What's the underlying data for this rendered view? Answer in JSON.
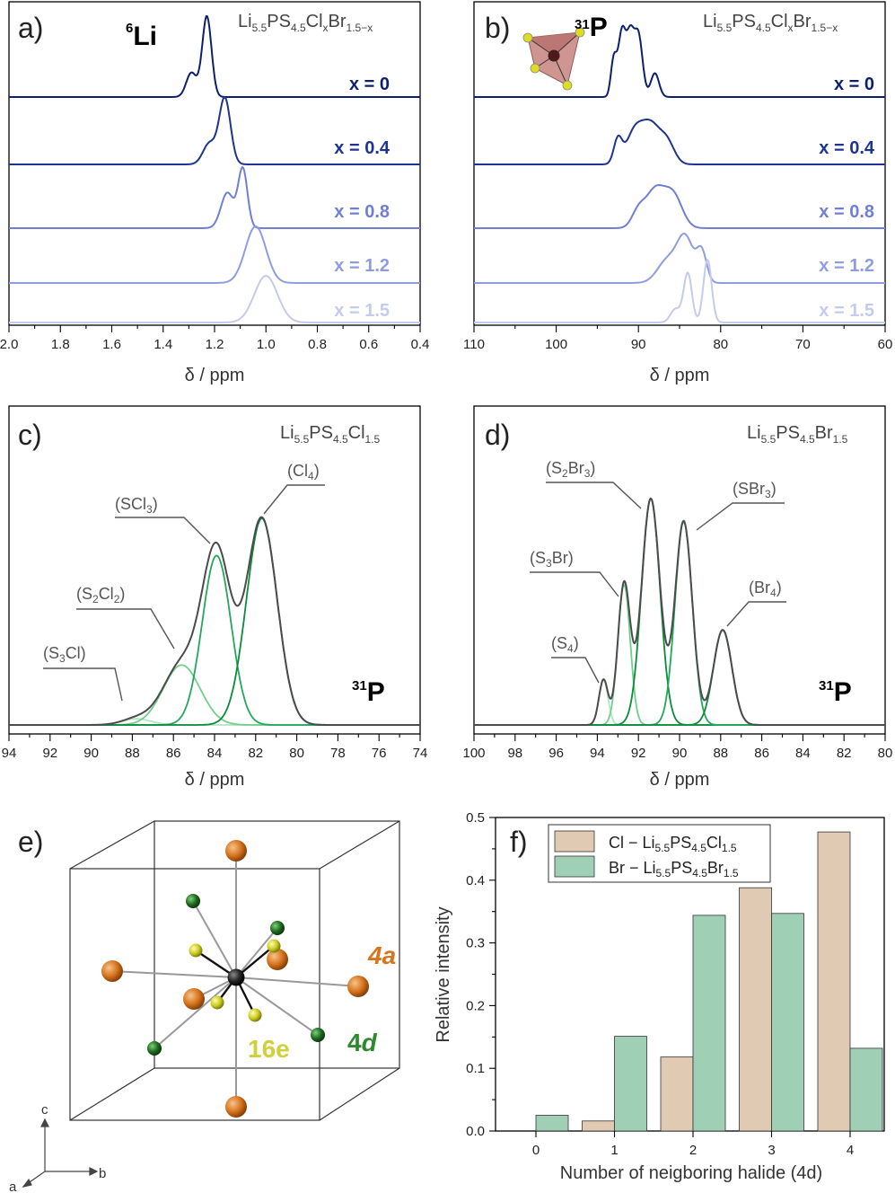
{
  "panels": {
    "a": {
      "letter": "a)",
      "nucleus_mass": "6",
      "nucleus_symbol": "Li",
      "formula": {
        "p1": "Li",
        "s1": "5.5",
        "p2": "PS",
        "s2": "4.5",
        "p3": "Cl",
        "s3": "x",
        "p4": "Br",
        "s4": "1.5−x"
      }
    },
    "b": {
      "letter": "b)",
      "nucleus_mass": "31",
      "nucleus_symbol": "P",
      "formula": {
        "p1": "Li",
        "s1": "5.5",
        "p2": "PS",
        "s2": "4.5",
        "p3": "Cl",
        "s3": "x",
        "p4": "Br",
        "s4": "1.5−x"
      }
    },
    "c": {
      "letter": "c)",
      "nucleus_mass": "31",
      "nucleus_symbol": "P",
      "formula": {
        "p1": "Li",
        "s1": "5.5",
        "p2": "PS",
        "s2": "4.5",
        "p3": "Cl",
        "s3": "1.5"
      },
      "annotations": [
        {
          "id": "s3cl",
          "pre": "(S",
          "sub": "3",
          "post": "Cl)"
        },
        {
          "id": "s2cl2",
          "pre": "(S",
          "sub": "2",
          "mid": "Cl",
          "sub2": "2",
          "post": ")"
        },
        {
          "id": "scl3",
          "pre": "(SCl",
          "sub": "3",
          "post": ")"
        },
        {
          "id": "cl4",
          "pre": "(Cl",
          "sub": "4",
          "post": ")"
        }
      ]
    },
    "d": {
      "letter": "d)",
      "nucleus_mass": "31",
      "nucleus_symbol": "P",
      "formula": {
        "p1": "Li",
        "s1": "5.5",
        "p2": "PS",
        "s2": "4.5",
        "p3": "Br",
        "s3": "1.5"
      },
      "annotations": [
        {
          "id": "s4",
          "pre": "(S",
          "sub": "4",
          "post": ")"
        },
        {
          "id": "s3br",
          "pre": "(S",
          "sub": "3",
          "post": "Br)"
        },
        {
          "id": "s2br3",
          "pre": "(S",
          "sub": "2",
          "mid": "Br",
          "sub2": "3",
          "post": ")"
        },
        {
          "id": "sbr3",
          "pre": "(SBr",
          "sub": "3",
          "post": ")"
        },
        {
          "id": "br4",
          "pre": "(Br",
          "sub": "4",
          "post": ")"
        }
      ]
    },
    "e": {
      "letter": "e)",
      "label_4a": "4a",
      "label_4d_num": "4",
      "label_4d_ital": "d",
      "label_16e": "16e",
      "axis_c": "c",
      "axis_a": "a",
      "axis_b": "b"
    },
    "f": {
      "letter": "f)"
    }
  },
  "colors": {
    "x0": "#0d1f6e",
    "x04": "#1d3490",
    "x08": "#6f7fd6",
    "x12": "#8f9de0",
    "x15": "#c3cbef",
    "cl_bar": "#e1cab4",
    "br_bar": "#9fd0b6",
    "fit_dark": "#4b4b4b",
    "green1": "#0b8c3a",
    "green2": "#22a85a",
    "green3": "#71cf8c",
    "green4": "#b2e6c0",
    "orange": "#d7741e",
    "darkgreen": "#1f6b1f",
    "yellow": "#c8c820"
  },
  "chart_data": [
    {
      "id": "a",
      "type": "line",
      "title": "6Li",
      "xlabel": "δ / ppm",
      "xlim": [
        2.0,
        0.4
      ],
      "xticks": [
        "2.0",
        "1.8",
        "1.6",
        "1.4",
        "1.2",
        "1.0",
        "0.8",
        "0.6",
        "0.4"
      ],
      "series": [
        {
          "name": "x = 0",
          "peaks": [
            [
              1.23,
              1.0,
              0.018
            ],
            [
              1.29,
              0.3,
              0.02
            ]
          ]
        },
        {
          "name": "x = 0.4",
          "peaks": [
            [
              1.16,
              0.95,
              0.022
            ],
            [
              1.22,
              0.3,
              0.025
            ]
          ]
        },
        {
          "name": "x = 0.8",
          "peaks": [
            [
              1.09,
              0.75,
              0.018
            ],
            [
              1.15,
              0.45,
              0.025
            ]
          ]
        },
        {
          "name": "x = 1.2",
          "peaks": [
            [
              1.04,
              0.75,
              0.04
            ]
          ]
        },
        {
          "name": "x = 1.5",
          "peaks": [
            [
              1.0,
              0.65,
              0.045
            ]
          ]
        }
      ]
    },
    {
      "id": "b",
      "type": "line",
      "title": "31P",
      "xlabel": "δ / ppm",
      "xlim": [
        110,
        60
      ],
      "xticks": [
        "110",
        "100",
        "90",
        "80",
        "70",
        "60"
      ],
      "series": [
        {
          "name": "x = 0",
          "peaks": [
            [
              93.0,
              0.55,
              0.35
            ],
            [
              92.0,
              0.95,
              0.45
            ],
            [
              91.0,
              0.85,
              0.45
            ],
            [
              90.0,
              0.9,
              0.5
            ],
            [
              88.0,
              0.35,
              0.5
            ]
          ]
        },
        {
          "name": "x = 0.4",
          "peaks": [
            [
              92.5,
              0.35,
              0.5
            ],
            [
              90.5,
              0.45,
              1.0
            ],
            [
              88.5,
              0.55,
              1.1
            ],
            [
              86.5,
              0.3,
              0.9
            ]
          ]
        },
        {
          "name": "x = 0.8",
          "peaks": [
            [
              90.0,
              0.25,
              0.8
            ],
            [
              88.0,
              0.55,
              1.1
            ],
            [
              85.8,
              0.5,
              1.1
            ]
          ]
        },
        {
          "name": "x = 1.2",
          "peaks": [
            [
              86.5,
              0.3,
              1.2
            ],
            [
              84.3,
              0.6,
              1.0
            ],
            [
              82.3,
              0.4,
              0.6
            ]
          ]
        },
        {
          "name": "x = 1.5",
          "peaks": [
            [
              84.0,
              0.55,
              0.5
            ],
            [
              81.6,
              0.7,
              0.5
            ],
            [
              85.5,
              0.15,
              0.6
            ]
          ]
        }
      ]
    },
    {
      "id": "c",
      "type": "line",
      "title": "Li5.5PS4.5Cl1.5 31P",
      "xlabel": "δ / ppm",
      "xlim": [
        94,
        74
      ],
      "xticks": [
        "94",
        "92",
        "90",
        "88",
        "86",
        "84",
        "82",
        "80",
        "78",
        "76",
        "74"
      ],
      "components": [
        {
          "name": "(S3Cl)",
          "center": 87.8,
          "amp": 0.03,
          "width": 0.7
        },
        {
          "name": "(S2Cl2)",
          "center": 85.6,
          "amp": 0.29,
          "width": 0.9
        },
        {
          "name": "(SCl3)",
          "center": 83.9,
          "amp": 0.82,
          "width": 0.7
        },
        {
          "name": "(Cl4)",
          "center": 81.7,
          "amp": 1.0,
          "width": 0.75
        }
      ]
    },
    {
      "id": "d",
      "type": "line",
      "title": "Li5.5PS4.5Br1.5 31P",
      "xlabel": "δ / ppm",
      "xlim": [
        100,
        80
      ],
      "xticks": [
        "100",
        "98",
        "96",
        "94",
        "92",
        "90",
        "88",
        "86",
        "84",
        "82",
        "80"
      ],
      "components": [
        {
          "name": "(S4)",
          "center": 93.7,
          "amp": 0.2,
          "width": 0.22
        },
        {
          "name": "(S3Br)",
          "center": 92.7,
          "amp": 0.62,
          "width": 0.3
        },
        {
          "name": "(S2Br3)",
          "center": 91.4,
          "amp": 1.0,
          "width": 0.45
        },
        {
          "name": "(SBr3)",
          "center": 89.8,
          "amp": 0.9,
          "width": 0.42
        },
        {
          "name": "(Br4)",
          "center": 87.9,
          "amp": 0.42,
          "width": 0.45
        }
      ]
    },
    {
      "id": "f",
      "type": "bar",
      "xlabel": "Number of neigboring halide (4d)",
      "ylabel": "Relative intensity",
      "categories": [
        "0",
        "1",
        "2",
        "3",
        "4"
      ],
      "ylim": [
        0,
        0.5
      ],
      "yticks": [
        "0.0",
        "0.1",
        "0.2",
        "0.3",
        "0.4",
        "0.5"
      ],
      "series": [
        {
          "name": "Cl − Li5.5PS4.5Cl1.5",
          "values": [
            0.0,
            0.016,
            0.118,
            0.388,
            0.477
          ]
        },
        {
          "name": "Br − Li5.5PS4.5Br1.5",
          "values": [
            0.025,
            0.151,
            0.344,
            0.347,
            0.132
          ]
        }
      ],
      "legend": {
        "cl": {
          "pre": "Cl − Li",
          "s1": "5.5",
          "p2": "PS",
          "s2": "4.5",
          "p3": "Cl",
          "s3": "1.5"
        },
        "br": {
          "pre": "Br − Li",
          "s1": "5.5",
          "p2": "PS",
          "s2": "4.5",
          "p3": "Br",
          "s3": "1.5"
        }
      }
    }
  ]
}
